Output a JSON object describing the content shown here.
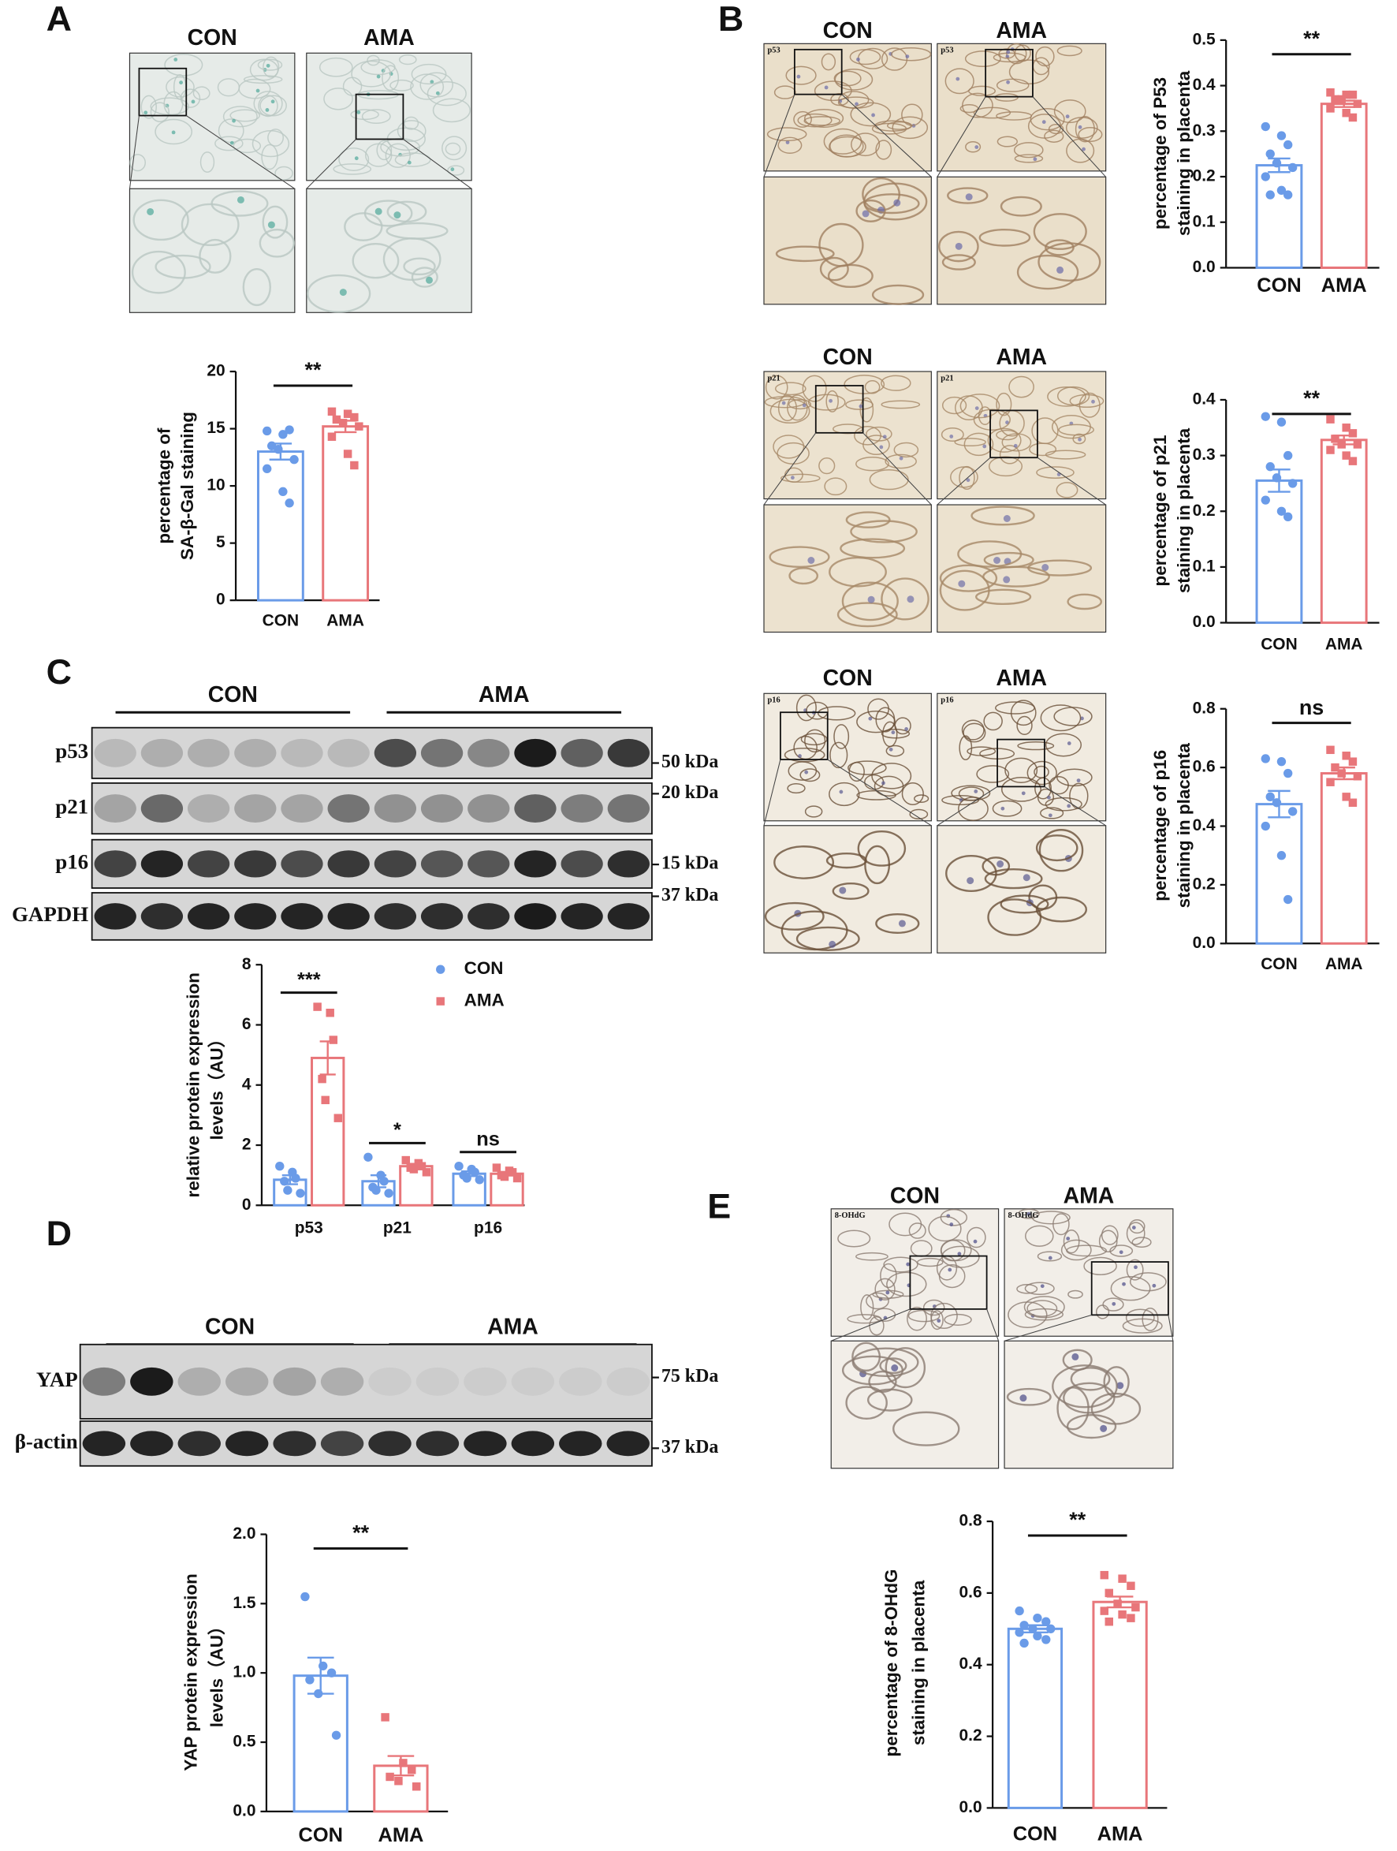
{
  "figure": {
    "panel_labels": [
      "A",
      "B",
      "C",
      "D",
      "E"
    ],
    "micrographs": [
      {
        "headers": [
          "CON",
          "AMA"
        ]
      },
      {
        "headers": [
          "CON",
          "AMA"
        ],
        "stain": "p53"
      },
      {
        "headers": [
          "CON",
          "AMA"
        ],
        "stain": "p21"
      },
      {
        "headers": [
          "CON",
          "AMA"
        ],
        "stain": "p16"
      },
      {
        "headers": [
          "CON",
          "AMA"
        ],
        "stain": "8-OHdG"
      }
    ],
    "blots": [
      {
        "groups": [
          "CON",
          "AMA"
        ],
        "rows": [
          {
            "label": "p53",
            "marker": "50 kDa"
          },
          {
            "label": "p21",
            "marker": "20 kDa"
          },
          {
            "label": "p16",
            "marker": "15 kDa"
          },
          {
            "label": "GAPDH",
            "marker": "37 kDa"
          }
        ]
      },
      {
        "groups": [
          "CON",
          "AMA"
        ],
        "rows": [
          {
            "label": "YAP",
            "marker": "75 kDa"
          },
          {
            "label": "β-actin",
            "marker": "37 kDa"
          }
        ]
      }
    ]
  },
  "chart_data": [
    {
      "type": "bar",
      "categories": [
        "CON",
        "AMA"
      ],
      "colors": [
        "#6a9be8",
        "#e8767a"
      ],
      "values": [
        13,
        15.2
      ],
      "errors": [
        0.7,
        0.5
      ],
      "points": [
        [
          14.8,
          14.5,
          14.9,
          13.5,
          13.2,
          12.3,
          11.5,
          9.5,
          8.5
        ],
        [
          16.5,
          16.3,
          16.0,
          15.8,
          15.5,
          15.2,
          14.3,
          12.8,
          11.8
        ]
      ],
      "ylabel": [
        "percentage of",
        "SA-β-Gal staining"
      ],
      "ylim": [
        0,
        20
      ],
      "yticks": [
        0,
        5,
        10,
        15,
        20
      ],
      "significance": "**"
    },
    {
      "type": "bar",
      "categories": [
        "CON",
        "AMA"
      ],
      "colors": [
        "#6a9be8",
        "#e8767a"
      ],
      "values": [
        0.225,
        0.36
      ],
      "errors": [
        0.015,
        0.007
      ],
      "points": [
        [
          0.31,
          0.29,
          0.27,
          0.25,
          0.23,
          0.22,
          0.2,
          0.17,
          0.16,
          0.16
        ],
        [
          0.385,
          0.38,
          0.38,
          0.37,
          0.37,
          0.36,
          0.35,
          0.34,
          0.33
        ]
      ],
      "ylabel": [
        "percentage of P53",
        "staining in placenta"
      ],
      "ylim": [
        0,
        0.5
      ],
      "yticks": [
        {
          "value": 0,
          "label": "0.0"
        },
        {
          "value": 0.1,
          "label": "0.1"
        },
        {
          "value": 0.2,
          "label": "0.2"
        },
        {
          "value": 0.3,
          "label": "0.3"
        },
        {
          "value": 0.4,
          "label": "0.4"
        },
        {
          "value": 0.5,
          "label": "0.5"
        }
      ],
      "significance": "**"
    },
    {
      "type": "bar",
      "categories": [
        "CON",
        "AMA"
      ],
      "colors": [
        "#6a9be8",
        "#e8767a"
      ],
      "values": [
        0.255,
        0.328
      ],
      "errors": [
        0.02,
        0.008
      ],
      "points": [
        [
          0.37,
          0.36,
          0.3,
          0.28,
          0.26,
          0.25,
          0.22,
          0.2,
          0.19
        ],
        [
          0.365,
          0.35,
          0.34,
          0.33,
          0.32,
          0.32,
          0.31,
          0.3,
          0.29
        ]
      ],
      "ylabel": [
        "percentage of p21",
        "staining in placenta"
      ],
      "ylim": [
        0,
        0.4
      ],
      "yticks": [
        {
          "value": 0,
          "label": "0.0"
        },
        {
          "value": 0.1,
          "label": "0.1"
        },
        {
          "value": 0.2,
          "label": "0.2"
        },
        {
          "value": 0.3,
          "label": "0.3"
        },
        {
          "value": 0.4,
          "label": "0.4"
        }
      ],
      "significance": "**"
    },
    {
      "type": "bar",
      "categories": [
        "CON",
        "AMA"
      ],
      "colors": [
        "#6a9be8",
        "#e8767a"
      ],
      "values": [
        0.475,
        0.58
      ],
      "errors": [
        0.045,
        0.02
      ],
      "points": [
        [
          0.63,
          0.62,
          0.58,
          0.5,
          0.48,
          0.45,
          0.4,
          0.3,
          0.15
        ],
        [
          0.66,
          0.64,
          0.62,
          0.6,
          0.58,
          0.57,
          0.55,
          0.5,
          0.48
        ]
      ],
      "ylabel": [
        "percentage of p16",
        "staining in placenta"
      ],
      "ylim": [
        0,
        0.8
      ],
      "yticks": [
        {
          "value": 0,
          "label": "0.0"
        },
        {
          "value": 0.2,
          "label": "0.2"
        },
        {
          "value": 0.4,
          "label": "0.4"
        },
        {
          "value": 0.6,
          "label": "0.6"
        },
        {
          "value": 0.8,
          "label": "0.8"
        }
      ],
      "significance": "ns"
    },
    {
      "type": "bar",
      "categories": [
        "p53",
        "p21",
        "p16"
      ],
      "series": [
        {
          "name": "CON",
          "color": "#6a9be8",
          "values": [
            0.85,
            0.8,
            1.05
          ],
          "errors": [
            0.15,
            0.2,
            0.08
          ],
          "points": [
            [
              1.3,
              1.1,
              0.9,
              0.8,
              0.5,
              0.4
            ],
            [
              1.6,
              1.0,
              0.8,
              0.6,
              0.5,
              0.4
            ],
            [
              1.3,
              1.2,
              1.1,
              1.0,
              0.9,
              0.85
            ]
          ]
        },
        {
          "name": "AMA",
          "color": "#e8767a",
          "values": [
            4.9,
            1.3,
            1.05
          ],
          "errors": [
            0.55,
            0.08,
            0.06
          ],
          "points": [
            [
              6.6,
              6.4,
              5.5,
              4.2,
              3.5,
              2.9
            ],
            [
              1.5,
              1.4,
              1.3,
              1.25,
              1.2,
              1.1
            ],
            [
              1.25,
              1.15,
              1.1,
              1.0,
              0.95,
              0.9
            ]
          ]
        }
      ],
      "legend": "upper-right",
      "ylabel": [
        "relative protein expression",
        "levels（AU）"
      ],
      "ylim": [
        0,
        8
      ],
      "yticks": [
        0,
        2,
        4,
        6,
        8
      ],
      "significance": [
        "***",
        "*",
        "ns"
      ]
    },
    {
      "type": "bar",
      "categories": [
        "CON",
        "AMA"
      ],
      "colors": [
        "#6a9be8",
        "#e8767a"
      ],
      "values": [
        0.98,
        0.33
      ],
      "errors": [
        0.13,
        0.07
      ],
      "points": [
        [
          1.55,
          1.05,
          1.0,
          0.95,
          0.85,
          0.55
        ],
        [
          0.68,
          0.35,
          0.3,
          0.25,
          0.22,
          0.18
        ]
      ],
      "ylabel": [
        "YAP protein expression",
        "levels（AU）"
      ],
      "ylim": [
        0,
        2
      ],
      "yticks": [
        {
          "value": 0,
          "label": "0.0"
        },
        {
          "value": 0.5,
          "label": "0.5"
        },
        {
          "value": 1,
          "label": "1.0"
        },
        {
          "value": 1.5,
          "label": "1.5"
        },
        {
          "value": 2,
          "label": "2.0"
        }
      ],
      "significance": "**"
    },
    {
      "type": "bar",
      "categories": [
        "CON",
        "AMA"
      ],
      "colors": [
        "#6a9be8",
        "#e8767a"
      ],
      "values": [
        0.5,
        0.575
      ],
      "errors": [
        0.01,
        0.015
      ],
      "points": [
        [
          0.55,
          0.53,
          0.52,
          0.51,
          0.5,
          0.5,
          0.49,
          0.48,
          0.47,
          0.46
        ],
        [
          0.65,
          0.64,
          0.62,
          0.6,
          0.57,
          0.56,
          0.55,
          0.54,
          0.53,
          0.52
        ]
      ],
      "ylabel": [
        "percentage of 8-OHdG",
        "staining in placenta"
      ],
      "ylim": [
        0,
        0.8
      ],
      "yticks": [
        {
          "value": 0,
          "label": "0.0"
        },
        {
          "value": 0.2,
          "label": "0.2"
        },
        {
          "value": 0.4,
          "label": "0.4"
        },
        {
          "value": 0.6,
          "label": "0.6"
        },
        {
          "value": 0.8,
          "label": "0.8"
        }
      ],
      "significance": "**"
    }
  ]
}
